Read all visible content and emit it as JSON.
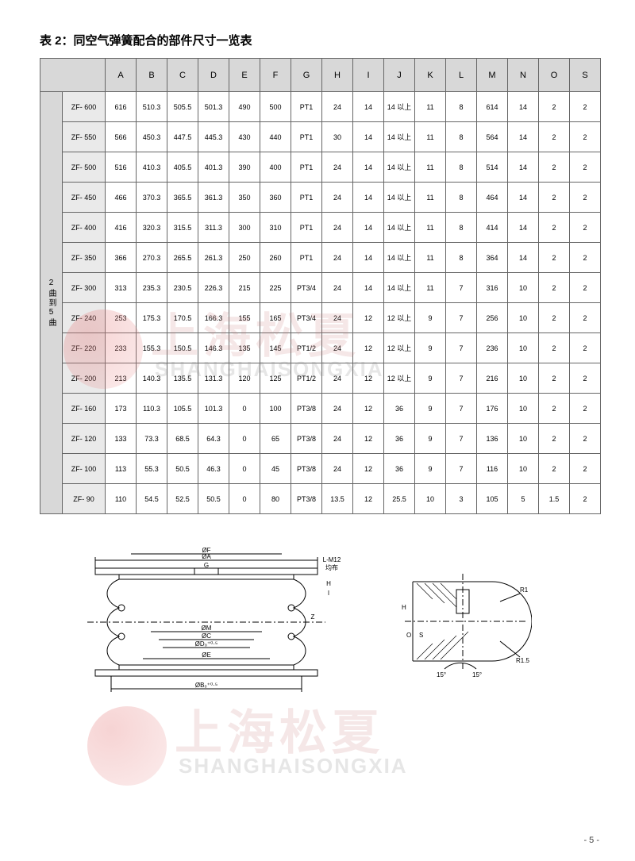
{
  "title": "表 2：同空气弹簧配合的部件尺寸一览表",
  "side_label": "2曲到5曲",
  "columns": [
    "A",
    "B",
    "C",
    "D",
    "E",
    "F",
    "G",
    "H",
    "I",
    "J",
    "K",
    "L",
    "M",
    "N",
    "O",
    "S"
  ],
  "models": [
    "ZF- 600",
    "ZF- 550",
    "ZF- 500",
    "ZF- 450",
    "ZF- 400",
    "ZF- 350",
    "ZF- 300",
    "ZF- 240",
    "ZF- 220",
    "ZF- 200",
    "ZF- 160",
    "ZF- 120",
    "ZF- 100",
    "ZF- 90"
  ],
  "rows": [
    [
      "616",
      "510.3",
      "505.5",
      "501.3",
      "490",
      "500",
      "PT1",
      "24",
      "14",
      "14 以上",
      "11",
      "8",
      "614",
      "14",
      "2",
      "2"
    ],
    [
      "566",
      "450.3",
      "447.5",
      "445.3",
      "430",
      "440",
      "PT1",
      "30",
      "14",
      "14 以上",
      "11",
      "8",
      "564",
      "14",
      "2",
      "2"
    ],
    [
      "516",
      "410.3",
      "405.5",
      "401.3",
      "390",
      "400",
      "PT1",
      "24",
      "14",
      "14 以上",
      "11",
      "8",
      "514",
      "14",
      "2",
      "2"
    ],
    [
      "466",
      "370.3",
      "365.5",
      "361.3",
      "350",
      "360",
      "PT1",
      "24",
      "14",
      "14 以上",
      "11",
      "8",
      "464",
      "14",
      "2",
      "2"
    ],
    [
      "416",
      "320.3",
      "315.5",
      "311.3",
      "300",
      "310",
      "PT1",
      "24",
      "14",
      "14 以上",
      "11",
      "8",
      "414",
      "14",
      "2",
      "2"
    ],
    [
      "366",
      "270.3",
      "265.5",
      "261.3",
      "250",
      "260",
      "PT1",
      "24",
      "14",
      "14 以上",
      "11",
      "8",
      "364",
      "14",
      "2",
      "2"
    ],
    [
      "313",
      "235.3",
      "230.5",
      "226.3",
      "215",
      "225",
      "PT3/4",
      "24",
      "14",
      "14 以上",
      "11",
      "7",
      "316",
      "10",
      "2",
      "2"
    ],
    [
      "253",
      "175.3",
      "170.5",
      "166.3",
      "155",
      "165",
      "PT3/4",
      "24",
      "12",
      "12 以上",
      "9",
      "7",
      "256",
      "10",
      "2",
      "2"
    ],
    [
      "233",
      "155.3",
      "150.5",
      "146.3",
      "135",
      "145",
      "PT1/2",
      "24",
      "12",
      "12 以上",
      "9",
      "7",
      "236",
      "10",
      "2",
      "2"
    ],
    [
      "213",
      "140.3",
      "135.5",
      "131.3",
      "120",
      "125",
      "PT1/2",
      "24",
      "12",
      "12 以上",
      "9",
      "7",
      "216",
      "10",
      "2",
      "2"
    ],
    [
      "173",
      "110.3",
      "105.5",
      "101.3",
      "0",
      "100",
      "PT3/8",
      "24",
      "12",
      "36",
      "9",
      "7",
      "176",
      "10",
      "2",
      "2"
    ],
    [
      "133",
      "73.3",
      "68.5",
      "64.3",
      "0",
      "65",
      "PT3/8",
      "24",
      "12",
      "36",
      "9",
      "7",
      "136",
      "10",
      "2",
      "2"
    ],
    [
      "113",
      "55.3",
      "50.5",
      "46.3",
      "0",
      "45",
      "PT3/8",
      "24",
      "12",
      "36",
      "9",
      "7",
      "116",
      "10",
      "2",
      "2"
    ],
    [
      "110",
      "54.5",
      "52.5",
      "50.5",
      "0",
      "80",
      "PT3/8",
      "13.5",
      "12",
      "25.5",
      "10",
      "3",
      "105",
      "5",
      "1.5",
      "2"
    ]
  ],
  "watermark_cn": "上海松夏",
  "watermark_en": "SHANGHAISONGXIA",
  "page_num": "- 5 -",
  "diagram_labels": {
    "oa": "ØA",
    "of": "ØF",
    "g": "G",
    "om": "ØM",
    "oc": "ØC",
    "od": "ØD₀⁺⁰·⁵",
    "oe": "ØE",
    "ob": "ØB₀⁺⁰·⁵",
    "lm12": "L-M12",
    "jb": "均布",
    "h": "H",
    "i": "I",
    "z": "Z",
    "s": "S",
    "o": "O",
    "r1": "R1",
    "r15": "R1.5",
    "a15": "15°"
  },
  "col_widths": {
    "side": 28,
    "model": 54,
    "data": 39
  }
}
